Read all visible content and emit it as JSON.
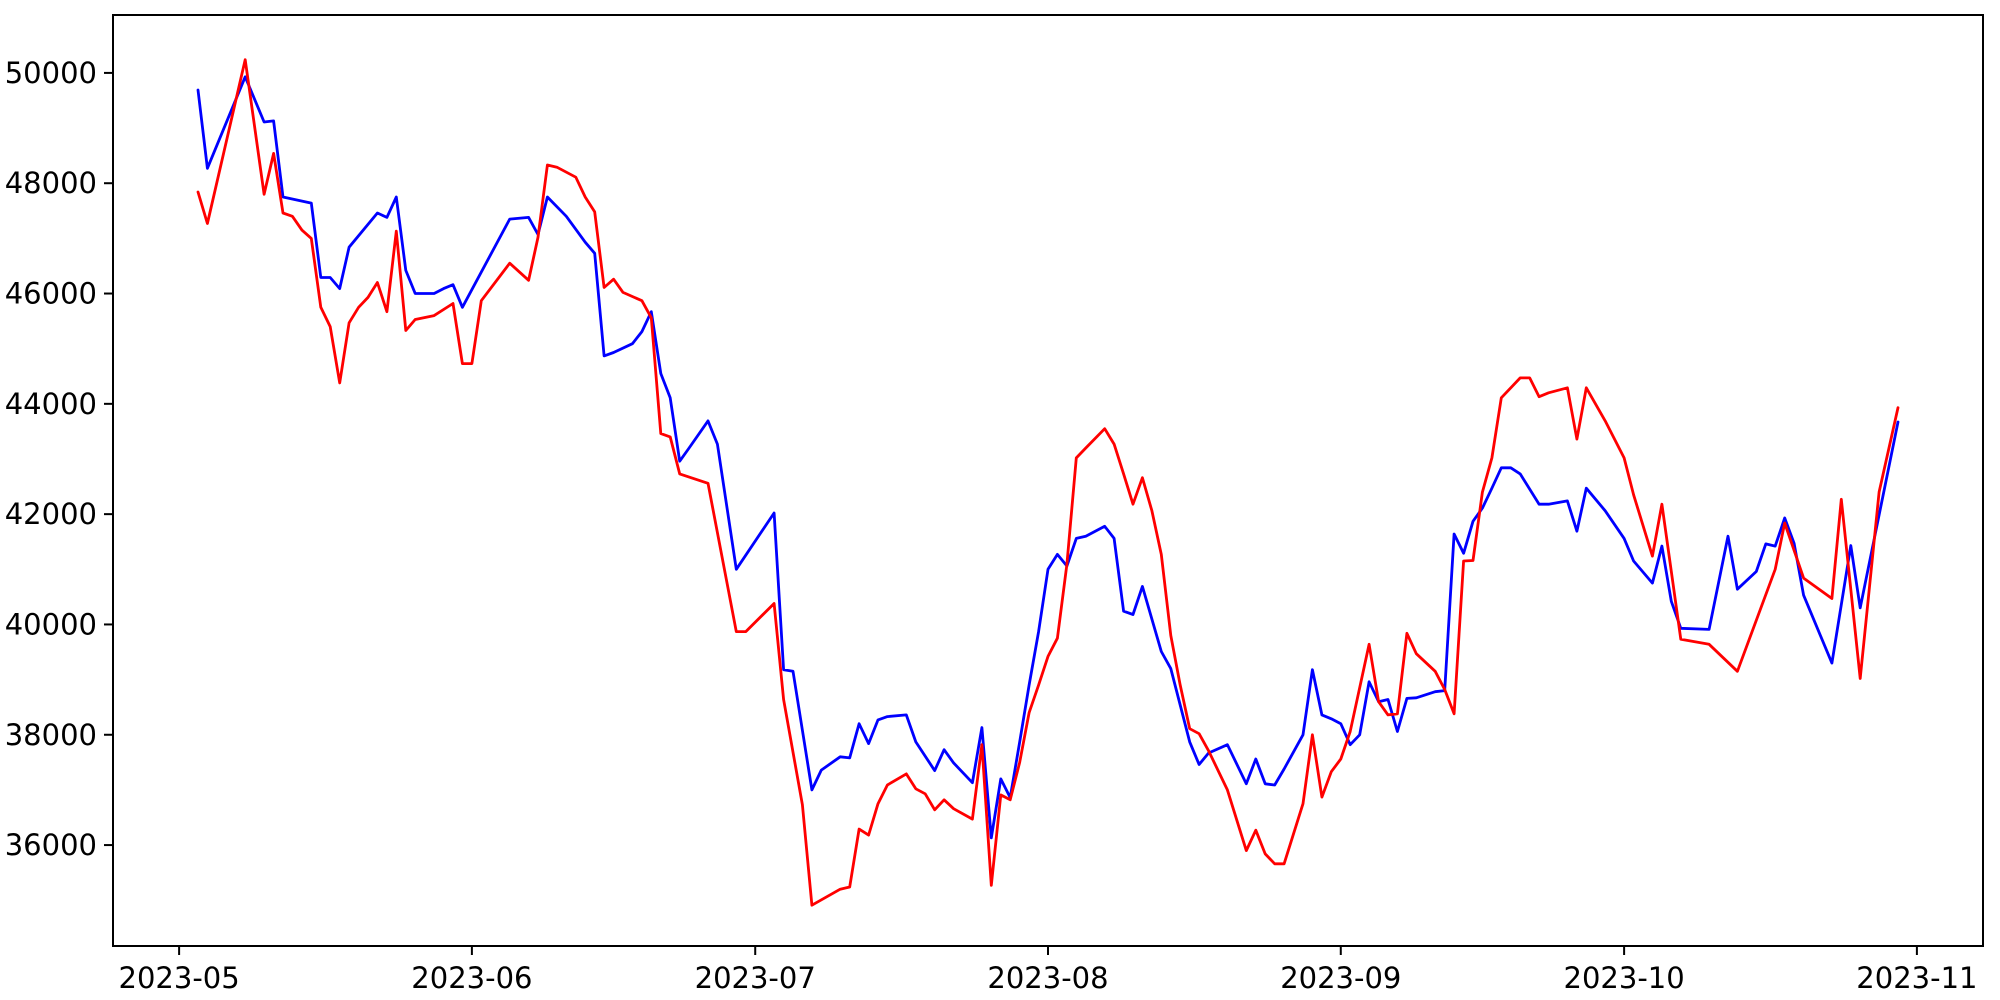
{
  "figure": {
    "background": "#ffffff",
    "axes_color": "#000000"
  },
  "chart_data": {
    "type": "line",
    "title": "",
    "xlabel": "",
    "ylabel": "",
    "grid": false,
    "legend": null,
    "x_axis": {
      "tick_labels": [
        "2023-05",
        "2023-06",
        "2023-07",
        "2023-08",
        "2023-09",
        "2023-10",
        "2023-11"
      ],
      "tick_dates": [
        "2023-05-01",
        "2023-06-01",
        "2023-07-01",
        "2023-08-01",
        "2023-09-01",
        "2023-10-01",
        "2023-11-01"
      ],
      "xlim_dates": [
        "2023-04-24",
        "2023-11-08"
      ]
    },
    "y_axis": {
      "tick_values": [
        36000,
        38000,
        40000,
        42000,
        44000,
        46000,
        48000,
        50000
      ],
      "ylim": [
        34170,
        51050
      ]
    },
    "series": [
      {
        "name": "blue-line",
        "color": "#0000ff",
        "points": [
          [
            "2023-05-03",
            49690
          ],
          [
            "2023-05-04",
            48270
          ],
          [
            "2023-05-08",
            49930
          ],
          [
            "2023-05-10",
            49110
          ],
          [
            "2023-05-11",
            49130
          ],
          [
            "2023-05-12",
            47750
          ],
          [
            "2023-05-15",
            47640
          ],
          [
            "2023-05-16",
            46290
          ],
          [
            "2023-05-17",
            46290
          ],
          [
            "2023-05-18",
            46090
          ],
          [
            "2023-05-19",
            46840
          ],
          [
            "2023-05-22",
            47460
          ],
          [
            "2023-05-23",
            47380
          ],
          [
            "2023-05-24",
            47750
          ],
          [
            "2023-05-25",
            46420
          ],
          [
            "2023-05-26",
            46000
          ],
          [
            "2023-05-28",
            46000
          ],
          [
            "2023-05-29",
            46090
          ],
          [
            "2023-05-30",
            46160
          ],
          [
            "2023-05-31",
            45750
          ],
          [
            "2023-06-05",
            47350
          ],
          [
            "2023-06-07",
            47380
          ],
          [
            "2023-06-08",
            47070
          ],
          [
            "2023-06-09",
            47750
          ],
          [
            "2023-06-11",
            47400
          ],
          [
            "2023-06-13",
            46930
          ],
          [
            "2023-06-14",
            46730
          ],
          [
            "2023-06-15",
            44870
          ],
          [
            "2023-06-16",
            44930
          ],
          [
            "2023-06-18",
            45090
          ],
          [
            "2023-06-19",
            45310
          ],
          [
            "2023-06-20",
            45670
          ],
          [
            "2023-06-21",
            44550
          ],
          [
            "2023-06-22",
            44110
          ],
          [
            "2023-06-23",
            42960
          ],
          [
            "2023-06-24",
            43200
          ],
          [
            "2023-06-26",
            43690
          ],
          [
            "2023-06-27",
            43270
          ],
          [
            "2023-06-29",
            41000
          ],
          [
            "2023-07-03",
            42020
          ],
          [
            "2023-07-04",
            39180
          ],
          [
            "2023-07-05",
            39150
          ],
          [
            "2023-07-07",
            37000
          ],
          [
            "2023-07-08",
            37360
          ],
          [
            "2023-07-10",
            37600
          ],
          [
            "2023-07-11",
            37580
          ],
          [
            "2023-07-12",
            38200
          ],
          [
            "2023-07-13",
            37840
          ],
          [
            "2023-07-14",
            38270
          ],
          [
            "2023-07-15",
            38330
          ],
          [
            "2023-07-17",
            38360
          ],
          [
            "2023-07-18",
            37870
          ],
          [
            "2023-07-20",
            37350
          ],
          [
            "2023-07-21",
            37730
          ],
          [
            "2023-07-22",
            37490
          ],
          [
            "2023-07-24",
            37130
          ],
          [
            "2023-07-25",
            38130
          ],
          [
            "2023-07-26",
            36130
          ],
          [
            "2023-07-27",
            37200
          ],
          [
            "2023-07-28",
            36860
          ],
          [
            "2023-07-29",
            37870
          ],
          [
            "2023-07-30",
            38900
          ],
          [
            "2023-07-31",
            39870
          ],
          [
            "2023-08-01",
            41000
          ],
          [
            "2023-08-02",
            41270
          ],
          [
            "2023-08-03",
            41060
          ],
          [
            "2023-08-04",
            41560
          ],
          [
            "2023-08-05",
            41600
          ],
          [
            "2023-08-07",
            41780
          ],
          [
            "2023-08-08",
            41560
          ],
          [
            "2023-08-09",
            40240
          ],
          [
            "2023-08-10",
            40180
          ],
          [
            "2023-08-11",
            40690
          ],
          [
            "2023-08-13",
            39510
          ],
          [
            "2023-08-14",
            39200
          ],
          [
            "2023-08-16",
            37870
          ],
          [
            "2023-08-17",
            37460
          ],
          [
            "2023-08-18",
            37670
          ],
          [
            "2023-08-20",
            37820
          ],
          [
            "2023-08-22",
            37110
          ],
          [
            "2023-08-23",
            37560
          ],
          [
            "2023-08-24",
            37110
          ],
          [
            "2023-08-25",
            37090
          ],
          [
            "2023-08-26",
            37380
          ],
          [
            "2023-08-28",
            38000
          ],
          [
            "2023-08-29",
            39180
          ],
          [
            "2023-08-30",
            38360
          ],
          [
            "2023-08-31",
            38290
          ],
          [
            "2023-09-01",
            38200
          ],
          [
            "2023-09-02",
            37820
          ],
          [
            "2023-09-03",
            38000
          ],
          [
            "2023-09-04",
            38960
          ],
          [
            "2023-09-05",
            38600
          ],
          [
            "2023-09-06",
            38640
          ],
          [
            "2023-09-07",
            38060
          ],
          [
            "2023-09-08",
            38660
          ],
          [
            "2023-09-09",
            38670
          ],
          [
            "2023-09-11",
            38780
          ],
          [
            "2023-09-12",
            38800
          ],
          [
            "2023-09-13",
            41640
          ],
          [
            "2023-09-14",
            41290
          ],
          [
            "2023-09-15",
            41870
          ],
          [
            "2023-09-16",
            42110
          ],
          [
            "2023-09-17",
            42470
          ],
          [
            "2023-09-18",
            42840
          ],
          [
            "2023-09-19",
            42840
          ],
          [
            "2023-09-20",
            42730
          ],
          [
            "2023-09-22",
            42180
          ],
          [
            "2023-09-23",
            42180
          ],
          [
            "2023-09-25",
            42240
          ],
          [
            "2023-09-26",
            41690
          ],
          [
            "2023-09-27",
            42470
          ],
          [
            "2023-09-29",
            42060
          ],
          [
            "2023-10-01",
            41560
          ],
          [
            "2023-10-02",
            41150
          ],
          [
            "2023-10-04",
            40750
          ],
          [
            "2023-10-05",
            41420
          ],
          [
            "2023-10-06",
            40420
          ],
          [
            "2023-10-07",
            39930
          ],
          [
            "2023-10-10",
            39910
          ],
          [
            "2023-10-12",
            41600
          ],
          [
            "2023-10-13",
            40640
          ],
          [
            "2023-10-15",
            40960
          ],
          [
            "2023-10-16",
            41460
          ],
          [
            "2023-10-17",
            41420
          ],
          [
            "2023-10-18",
            41930
          ],
          [
            "2023-10-19",
            41470
          ],
          [
            "2023-10-20",
            40530
          ],
          [
            "2023-10-23",
            39300
          ],
          [
            "2023-10-25",
            41430
          ],
          [
            "2023-10-26",
            40300
          ],
          [
            "2023-10-30",
            43670
          ]
        ]
      },
      {
        "name": "red-line",
        "color": "#ff0000",
        "points": [
          [
            "2023-05-03",
            47840
          ],
          [
            "2023-05-04",
            47270
          ],
          [
            "2023-05-08",
            50240
          ],
          [
            "2023-05-10",
            47800
          ],
          [
            "2023-05-11",
            48540
          ],
          [
            "2023-05-12",
            47460
          ],
          [
            "2023-05-13",
            47400
          ],
          [
            "2023-05-14",
            47150
          ],
          [
            "2023-05-15",
            47000
          ],
          [
            "2023-05-16",
            45750
          ],
          [
            "2023-05-17",
            45400
          ],
          [
            "2023-05-18",
            44380
          ],
          [
            "2023-05-19",
            45470
          ],
          [
            "2023-05-20",
            45750
          ],
          [
            "2023-05-21",
            45930
          ],
          [
            "2023-05-22",
            46200
          ],
          [
            "2023-05-23",
            45670
          ],
          [
            "2023-05-24",
            47130
          ],
          [
            "2023-05-25",
            45330
          ],
          [
            "2023-05-26",
            45530
          ],
          [
            "2023-05-28",
            45600
          ],
          [
            "2023-05-30",
            45820
          ],
          [
            "2023-05-31",
            44730
          ],
          [
            "2023-06-01",
            44730
          ],
          [
            "2023-06-02",
            45870
          ],
          [
            "2023-06-05",
            46550
          ],
          [
            "2023-06-07",
            46240
          ],
          [
            "2023-06-08",
            47020
          ],
          [
            "2023-06-09",
            48330
          ],
          [
            "2023-06-10",
            48290
          ],
          [
            "2023-06-12",
            48110
          ],
          [
            "2023-06-13",
            47750
          ],
          [
            "2023-06-14",
            47480
          ],
          [
            "2023-06-15",
            46110
          ],
          [
            "2023-06-16",
            46260
          ],
          [
            "2023-06-17",
            46020
          ],
          [
            "2023-06-19",
            45870
          ],
          [
            "2023-06-20",
            45560
          ],
          [
            "2023-06-21",
            43460
          ],
          [
            "2023-06-22",
            43400
          ],
          [
            "2023-06-23",
            42730
          ],
          [
            "2023-06-26",
            42560
          ],
          [
            "2023-06-29",
            39870
          ],
          [
            "2023-06-30",
            39870
          ],
          [
            "2023-07-03",
            40380
          ],
          [
            "2023-07-04",
            38640
          ],
          [
            "2023-07-06",
            36730
          ],
          [
            "2023-07-07",
            34910
          ],
          [
            "2023-07-10",
            35200
          ],
          [
            "2023-07-11",
            35240
          ],
          [
            "2023-07-12",
            36290
          ],
          [
            "2023-07-13",
            36180
          ],
          [
            "2023-07-14",
            36750
          ],
          [
            "2023-07-15",
            37090
          ],
          [
            "2023-07-17",
            37290
          ],
          [
            "2023-07-18",
            37020
          ],
          [
            "2023-07-19",
            36930
          ],
          [
            "2023-07-20",
            36640
          ],
          [
            "2023-07-21",
            36820
          ],
          [
            "2023-07-22",
            36660
          ],
          [
            "2023-07-24",
            36470
          ],
          [
            "2023-07-25",
            37820
          ],
          [
            "2023-07-26",
            35270
          ],
          [
            "2023-07-27",
            36910
          ],
          [
            "2023-07-28",
            36820
          ],
          [
            "2023-07-29",
            37500
          ],
          [
            "2023-07-30",
            38400
          ],
          [
            "2023-07-31",
            38900
          ],
          [
            "2023-08-01",
            39420
          ],
          [
            "2023-08-02",
            39750
          ],
          [
            "2023-08-03",
            41090
          ],
          [
            "2023-08-04",
            43020
          ],
          [
            "2023-08-05",
            43200
          ],
          [
            "2023-08-07",
            43550
          ],
          [
            "2023-08-08",
            43270
          ],
          [
            "2023-08-09",
            42730
          ],
          [
            "2023-08-10",
            42180
          ],
          [
            "2023-08-11",
            42660
          ],
          [
            "2023-08-12",
            42060
          ],
          [
            "2023-08-13",
            41270
          ],
          [
            "2023-08-14",
            39800
          ],
          [
            "2023-08-15",
            38900
          ],
          [
            "2023-08-16",
            38110
          ],
          [
            "2023-08-17",
            38020
          ],
          [
            "2023-08-18",
            37710
          ],
          [
            "2023-08-20",
            37000
          ],
          [
            "2023-08-22",
            35900
          ],
          [
            "2023-08-23",
            36270
          ],
          [
            "2023-08-24",
            35840
          ],
          [
            "2023-08-25",
            35660
          ],
          [
            "2023-08-26",
            35660
          ],
          [
            "2023-08-28",
            36750
          ],
          [
            "2023-08-29",
            38000
          ],
          [
            "2023-08-30",
            36870
          ],
          [
            "2023-08-31",
            37330
          ],
          [
            "2023-09-01",
            37560
          ],
          [
            "2023-09-02",
            38060
          ],
          [
            "2023-09-04",
            39640
          ],
          [
            "2023-09-05",
            38600
          ],
          [
            "2023-09-06",
            38360
          ],
          [
            "2023-09-07",
            38380
          ],
          [
            "2023-09-08",
            39840
          ],
          [
            "2023-09-09",
            39470
          ],
          [
            "2023-09-11",
            39150
          ],
          [
            "2023-09-12",
            38820
          ],
          [
            "2023-09-13",
            38380
          ],
          [
            "2023-09-14",
            41150
          ],
          [
            "2023-09-15",
            41160
          ],
          [
            "2023-09-16",
            42400
          ],
          [
            "2023-09-17",
            43020
          ],
          [
            "2023-09-18",
            44110
          ],
          [
            "2023-09-20",
            44470
          ],
          [
            "2023-09-21",
            44470
          ],
          [
            "2023-09-22",
            44130
          ],
          [
            "2023-09-23",
            44200
          ],
          [
            "2023-09-25",
            44290
          ],
          [
            "2023-09-26",
            43360
          ],
          [
            "2023-09-27",
            44290
          ],
          [
            "2023-09-29",
            43690
          ],
          [
            "2023-10-01",
            43020
          ],
          [
            "2023-10-02",
            42350
          ],
          [
            "2023-10-04",
            41240
          ],
          [
            "2023-10-05",
            42180
          ],
          [
            "2023-10-07",
            39730
          ],
          [
            "2023-10-10",
            39640
          ],
          [
            "2023-10-13",
            39150
          ],
          [
            "2023-10-17",
            41000
          ],
          [
            "2023-10-18",
            41840
          ],
          [
            "2023-10-20",
            40840
          ],
          [
            "2023-10-23",
            40470
          ],
          [
            "2023-10-24",
            42270
          ],
          [
            "2023-10-26",
            39020
          ],
          [
            "2023-10-28",
            42400
          ],
          [
            "2023-10-30",
            43930
          ]
        ]
      }
    ]
  }
}
